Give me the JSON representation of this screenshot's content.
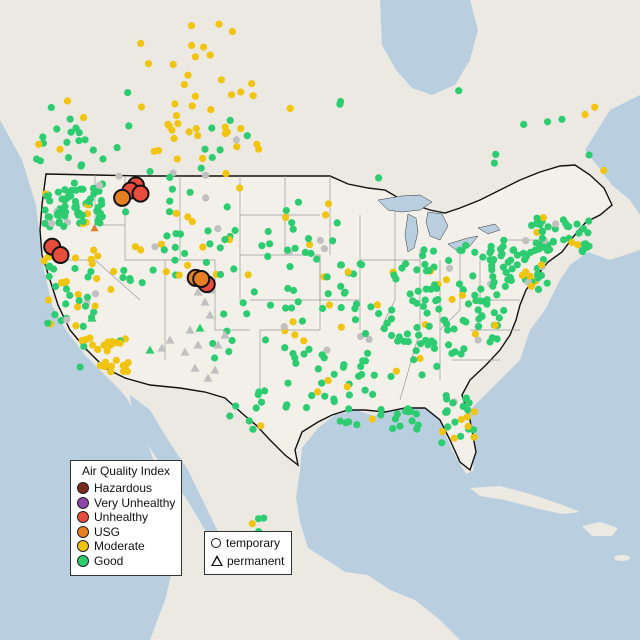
{
  "colors": {
    "water": "#b9cfe0",
    "land": "#ece9e2",
    "us_land": "#f3f0ea",
    "border": "#111111",
    "state_line": "#9a9a9a"
  },
  "legend": {
    "title": "Air Quality Index",
    "categories": [
      {
        "label": "Hazardous",
        "color": "#7a2a1e"
      },
      {
        "label": "Very Unhealthy",
        "color": "#8e44ad"
      },
      {
        "label": "Unhealthy",
        "color": "#e74c3c"
      },
      {
        "label": "USG",
        "color": "#e67e22"
      },
      {
        "label": "Moderate",
        "color": "#f1c40f"
      },
      {
        "label": "Good",
        "color": "#2ecc71"
      }
    ],
    "no_data_color": "#c0c0c0"
  },
  "shape_legend": {
    "temporary_label": "temporary",
    "permanent_label": "permanent"
  },
  "monitors": {
    "unhealthy_temporary": [
      {
        "lon": -114.4,
        "lat": 48.1
      },
      {
        "lon": -115.0,
        "lat": 47.6
      },
      {
        "lon": -113.9,
        "lat": 47.3
      },
      {
        "lon": -123.5,
        "lat": 42.2
      },
      {
        "lon": -122.6,
        "lat": 41.4
      },
      {
        "lon": -106.7,
        "lat": 38.6
      }
    ],
    "usg_temporary": [
      {
        "lon": -115.9,
        "lat": 46.9
      },
      {
        "lon": -107.9,
        "lat": 39.2
      },
      {
        "lon": -107.3,
        "lat": 39.1
      }
    ],
    "usg_permanent": [
      {
        "lon": -118.9,
        "lat": 44.0
      }
    ]
  }
}
